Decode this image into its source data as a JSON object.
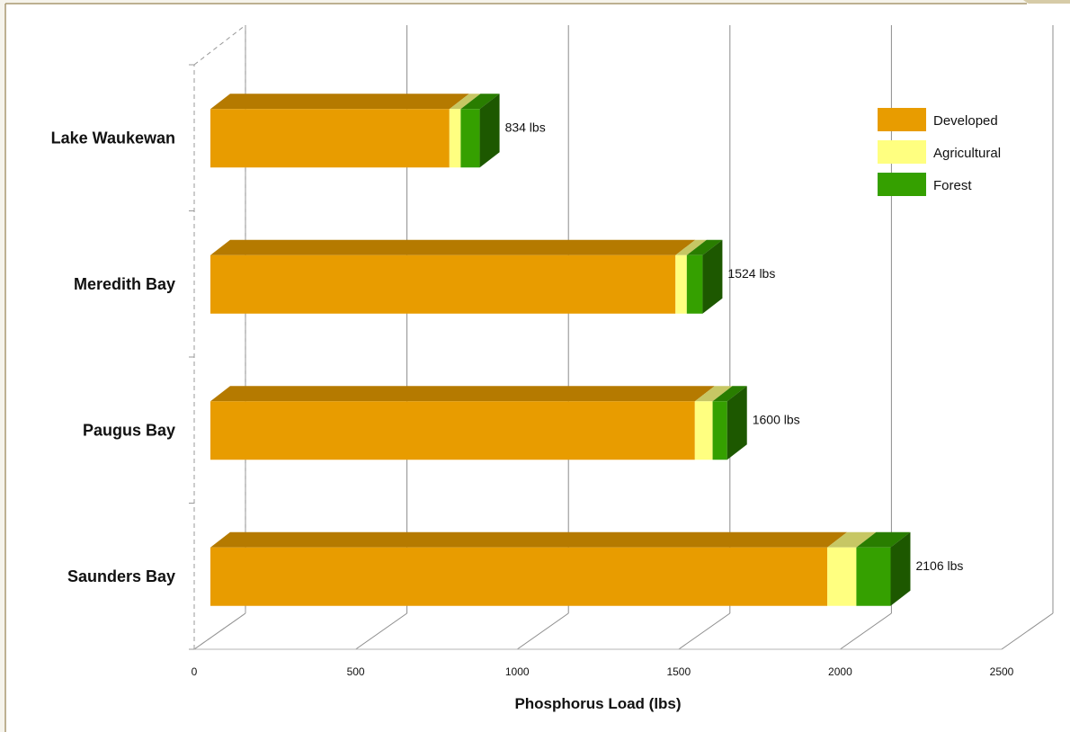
{
  "chart_data": {
    "type": "bar",
    "orientation": "horizontal",
    "stacked": true,
    "style": "3d",
    "categories": [
      "Lake Waukewan",
      "Meredith Bay",
      "Paugus Bay",
      "Saunders Bay"
    ],
    "series": [
      {
        "name": "Developed",
        "color": "#e89c00",
        "values": [
          740,
          1440,
          1500,
          1910
        ]
      },
      {
        "name": "Agricultural",
        "color": "#ffff80",
        "values": [
          35,
          35,
          55,
          90
        ]
      },
      {
        "name": "Forest",
        "color": "#35a000",
        "values": [
          59,
          49,
          45,
          106
        ]
      }
    ],
    "totals": [
      834,
      1524,
      1600,
      2106
    ],
    "data_labels": [
      "834 lbs",
      "1524 lbs",
      "1600 lbs",
      "2106 lbs"
    ],
    "xlabel": "Phosphorus Load (lbs)",
    "ylabel": "",
    "title": "",
    "xlim": [
      0,
      2500
    ],
    "xticks": [
      0,
      500,
      1000,
      1500,
      2000,
      2500
    ],
    "grid": true,
    "legend_position": "top-right"
  },
  "colors": {
    "background": "#ffffff",
    "page": "#f6f4ec",
    "frame_border": "#a89870",
    "gridline": "#8c8c8c",
    "axis": "#999999"
  }
}
